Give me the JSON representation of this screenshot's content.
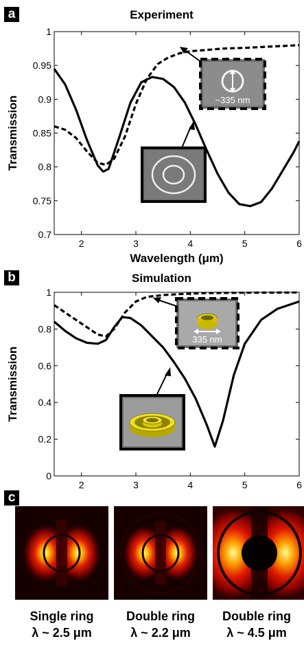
{
  "panel_a": {
    "letter": "a",
    "title": "Experiment",
    "inset_scale_label": "~335 nm"
  },
  "panel_b": {
    "letter": "b",
    "title": "Simulation",
    "inset_scale_label": "335 nm"
  },
  "panel_c": {
    "letter": "c",
    "captions": [
      {
        "line1": "Single ring",
        "line2": "λ ~ 2.5 μm"
      },
      {
        "line1": "Double ring",
        "line2": "λ ~ 2.2 μm"
      },
      {
        "line1": "Double ring",
        "line2": "λ ~ 4.5 μm"
      }
    ]
  },
  "chart_data": [
    {
      "type": "line",
      "title": "Experiment",
      "xlabel": "Wavelength (μm)",
      "ylabel": "Transmission",
      "xlim": [
        1.5,
        6
      ],
      "ylim": [
        0.7,
        1
      ],
      "xticks": [
        2,
        3,
        4,
        5,
        6
      ],
      "yticks": [
        0.7,
        0.75,
        0.8,
        0.85,
        0.9,
        0.95,
        1
      ],
      "ytick_labels": [
        "0.7",
        "0.75",
        "0.8",
        "0.85",
        "0.9",
        "0.95",
        "1"
      ],
      "grid": false,
      "series": [
        {
          "style": "dashed",
          "x": [
            1.5,
            1.7,
            1.9,
            2.1,
            2.3,
            2.45,
            2.6,
            2.8,
            3.0,
            3.2,
            3.4,
            3.6,
            3.8,
            4.0,
            4.3,
            4.6,
            5.0,
            5.5,
            6.0
          ],
          "y": [
            0.86,
            0.855,
            0.843,
            0.823,
            0.806,
            0.803,
            0.812,
            0.845,
            0.893,
            0.93,
            0.952,
            0.962,
            0.968,
            0.971,
            0.973,
            0.975,
            0.976,
            0.978,
            0.98
          ]
        },
        {
          "style": "solid",
          "x": [
            1.5,
            1.7,
            1.9,
            2.1,
            2.3,
            2.4,
            2.5,
            2.7,
            2.9,
            3.1,
            3.3,
            3.5,
            3.7,
            3.9,
            4.1,
            4.3,
            4.5,
            4.7,
            4.9,
            5.1,
            5.3,
            5.5,
            5.7,
            5.9,
            6.0
          ],
          "y": [
            0.945,
            0.922,
            0.885,
            0.84,
            0.802,
            0.793,
            0.797,
            0.845,
            0.895,
            0.925,
            0.933,
            0.93,
            0.918,
            0.895,
            0.862,
            0.825,
            0.79,
            0.762,
            0.745,
            0.742,
            0.748,
            0.768,
            0.795,
            0.822,
            0.838
          ]
        }
      ]
    },
    {
      "type": "line",
      "title": "Simulation",
      "xlabel": "Wavelength (μm)",
      "ylabel": "Transmission",
      "xlim": [
        1.5,
        6
      ],
      "ylim": [
        0,
        1
      ],
      "xticks": [
        2,
        3,
        4,
        5,
        6
      ],
      "yticks": [
        0,
        0.2,
        0.4,
        0.6,
        0.8,
        1
      ],
      "ytick_labels": [
        "0",
        "0.2",
        "0.4",
        "0.6",
        "0.8",
        "1"
      ],
      "grid": false,
      "series": [
        {
          "style": "dashed",
          "x": [
            1.5,
            1.7,
            1.9,
            2.1,
            2.3,
            2.45,
            2.6,
            2.8,
            3.0,
            3.2,
            3.5,
            3.8,
            4.2,
            4.7,
            5.2,
            6.0
          ],
          "y": [
            0.93,
            0.89,
            0.85,
            0.81,
            0.77,
            0.76,
            0.8,
            0.89,
            0.95,
            0.975,
            0.985,
            0.99,
            0.995,
            0.997,
            0.998,
            0.999
          ]
        },
        {
          "style": "solid",
          "x": [
            1.5,
            1.7,
            1.9,
            2.1,
            2.3,
            2.45,
            2.6,
            2.75,
            2.9,
            3.1,
            3.3,
            3.5,
            3.7,
            3.9,
            4.1,
            4.3,
            4.45,
            4.6,
            4.8,
            5.0,
            5.3,
            5.6,
            6.0
          ],
          "y": [
            0.84,
            0.79,
            0.75,
            0.725,
            0.72,
            0.74,
            0.81,
            0.865,
            0.86,
            0.82,
            0.76,
            0.7,
            0.62,
            0.53,
            0.42,
            0.28,
            0.16,
            0.3,
            0.55,
            0.72,
            0.85,
            0.91,
            0.95
          ]
        }
      ]
    }
  ]
}
